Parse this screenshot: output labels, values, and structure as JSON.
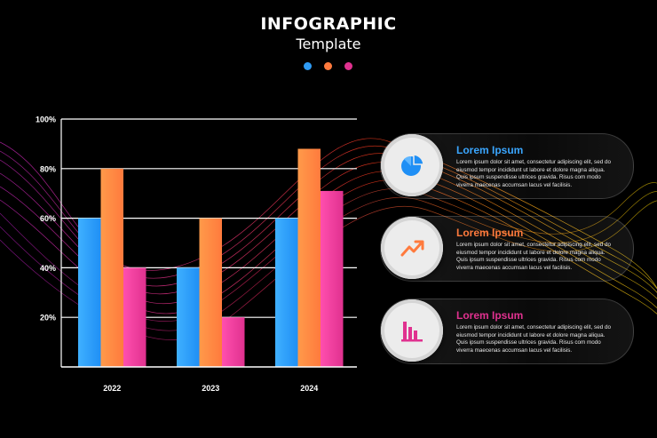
{
  "header": {
    "title": "INFOGRAPHIC",
    "subtitle": "Template",
    "dots": [
      "#2e9bf5",
      "#ff7a3d",
      "#e0318f"
    ]
  },
  "chart_data": {
    "type": "bar",
    "categories": [
      "2022",
      "2023",
      "2024"
    ],
    "series": [
      {
        "values": [
          60,
          40,
          60
        ],
        "color": "#1f8ff5"
      },
      {
        "values": [
          80,
          60,
          88
        ],
        "color": "#ff7a3d"
      },
      {
        "values": [
          40,
          20,
          71
        ],
        "color": "#e0318f"
      }
    ],
    "ylim": [
      0,
      100
    ],
    "ytick_values": [
      20,
      40,
      60,
      80,
      100
    ],
    "ytick_labels": [
      "20%",
      "40%",
      "60%",
      "80%",
      "100%"
    ],
    "grid": true
  },
  "cards": [
    {
      "title": "Lorem Ipsum",
      "title_color": "#3aa6ff",
      "icon": "pie-chart-icon",
      "text": "Lorem ipsum dolor sit amet, consectetur adipiscing elit, sed do eiusmod tempor incididunt ut labore et dolore magna aliqua. Quis ipsum suspendisse ultrices gravida. Risus com modo viverra maecenas accumsan lacus vel facilisis."
    },
    {
      "title": "Lorem Ipsum",
      "title_color": "#ff7a3d",
      "icon": "trend-up-arrow-icon",
      "text": "Lorem ipsum dolor sit amet, consectetur adipiscing elit, sed do eiusmod tempor incididunt ut labore et dolore magna aliqua. Quis ipsum suspendisse ultrices gravida. Risus com modo viverra maecenas accumsan lacus vel facilisis."
    },
    {
      "title": "Lorem Ipsum",
      "title_color": "#e0318f",
      "icon": "bar-chart-icon",
      "text": "Lorem ipsum dolor sit amet, consectetur adipiscing elit, sed do eiusmod tempor incididunt ut labore et dolore magna aliqua. Quis ipsum suspendisse ultrices gravida. Risus com modo viverra maecenas accumsan lacus vel facilisis."
    }
  ]
}
